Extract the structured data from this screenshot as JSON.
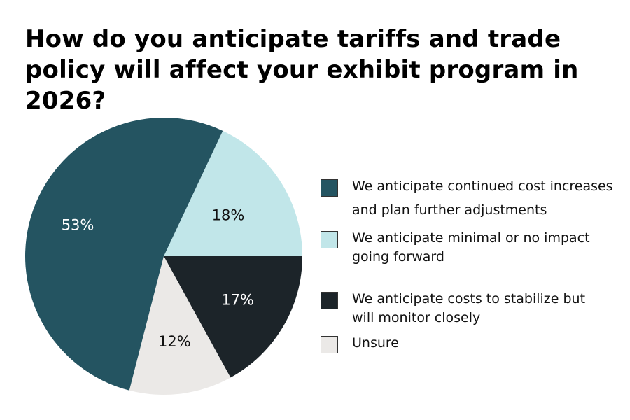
{
  "chart_data": {
    "type": "pie",
    "title": "How do you anticipate tariffs and trade policy will affect your exhibit program in 2026?",
    "legend_placement": "right",
    "slices": [
      {
        "label": "We anticipate continued cost increases and plan further adjustments",
        "value": 53,
        "display": "53%",
        "color": "#245461",
        "label_color": "#ffffff"
      },
      {
        "label": "We anticipate minimal or no impact going forward",
        "value": 18,
        "display": "18%",
        "color": "#c1e6e9",
        "label_color": "#111111"
      },
      {
        "label": "We anticipate costs to stabilize but will monitor closely",
        "value": 17,
        "display": "17%",
        "color": "#1c2429",
        "label_color": "#ffffff"
      },
      {
        "label": "Unsure",
        "value": 12,
        "display": "12%",
        "color": "#ebe9e7",
        "label_color": "#111111"
      }
    ]
  }
}
